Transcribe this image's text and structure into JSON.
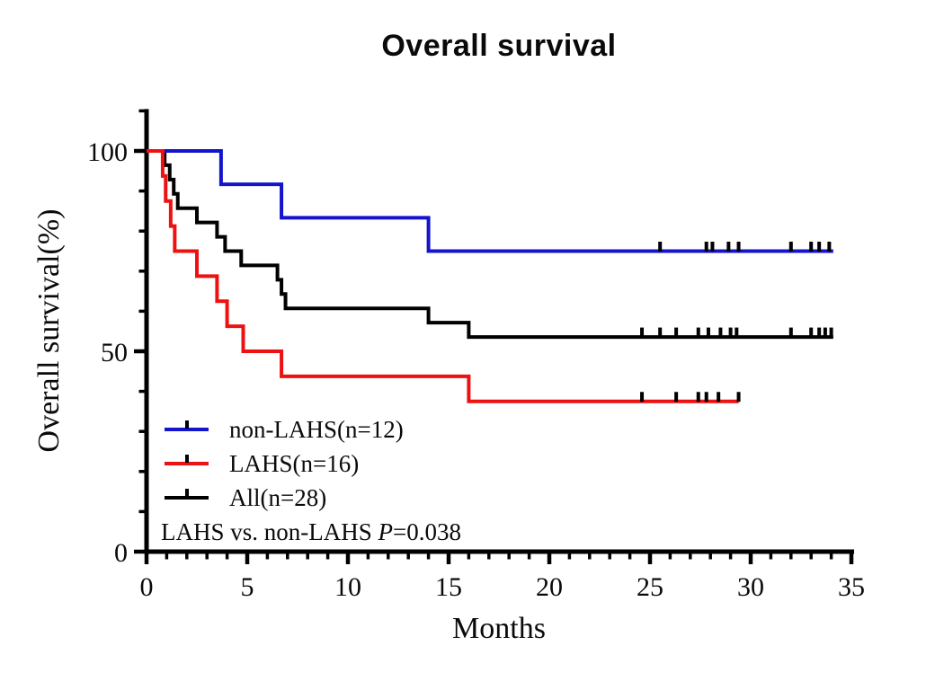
{
  "chart_data": {
    "type": "line",
    "subtype": "kaplan-meier-step",
    "title": "Overall survival",
    "xlabel": "Months",
    "ylabel": "Overall survival(%)",
    "xlim": [
      0,
      35
    ],
    "ylim": [
      0,
      110
    ],
    "x_major_ticks": [
      0,
      5,
      10,
      15,
      20,
      25,
      30,
      35
    ],
    "x_minor_tick_step": 1,
    "y_major_ticks": [
      0,
      50,
      100
    ],
    "y_minor_tick_step": 10,
    "grid": false,
    "legend_position": "lower-left-inside",
    "annotation": "LAHS vs. non-LAHS P=0.038",
    "series": [
      {
        "name": "non-LAHS(n=12)",
        "color": "#1414cc",
        "start": [
          0,
          100
        ],
        "drops": [
          [
            3.7,
            91.67
          ],
          [
            6.7,
            83.33
          ],
          [
            14,
            75
          ]
        ],
        "end_x": 34.1,
        "censor_ticks_x": [
          25.5,
          27.8,
          28.1,
          28.9,
          29.4,
          32.0,
          33.0,
          33.4,
          33.9
        ]
      },
      {
        "name": "LAHS(n=16)",
        "color": "#ee1111",
        "start": [
          0,
          100
        ],
        "drops": [
          [
            0.8,
            93.75
          ],
          [
            0.95,
            87.5
          ],
          [
            1.2,
            81.25
          ],
          [
            1.4,
            75
          ],
          [
            2.5,
            68.75
          ],
          [
            3.5,
            62.5
          ],
          [
            4.0,
            56.25
          ],
          [
            4.8,
            50
          ],
          [
            6.7,
            43.75
          ],
          [
            16,
            37.5
          ]
        ],
        "end_x": 29.4,
        "censor_ticks_x": [
          24.6,
          26.3,
          27.4,
          27.8,
          28.4,
          29.4
        ]
      },
      {
        "name": "All(n=28)",
        "color": "#000000",
        "start": [
          0,
          100
        ],
        "drops": [
          [
            0.9,
            96.43
          ],
          [
            1.15,
            92.86
          ],
          [
            1.35,
            89.29
          ],
          [
            1.55,
            85.71
          ],
          [
            2.5,
            82.14
          ],
          [
            3.5,
            78.57
          ],
          [
            3.9,
            75
          ],
          [
            4.7,
            71.43
          ],
          [
            6.5,
            67.86
          ],
          [
            6.7,
            64.29
          ],
          [
            6.9,
            60.71
          ],
          [
            14,
            57.14
          ],
          [
            16,
            53.57
          ]
        ],
        "end_x": 34.1,
        "censor_ticks_x": [
          24.6,
          25.5,
          26.3,
          27.4,
          27.9,
          28.5,
          29.0,
          29.3,
          32.0,
          33.0,
          33.4,
          33.7,
          34.0
        ]
      }
    ]
  },
  "axes": {
    "x": {
      "label": "Months",
      "tick_labels": [
        "0",
        "5",
        "10",
        "15",
        "20",
        "25",
        "30",
        "35"
      ]
    },
    "y": {
      "label": "Overall survival(%)",
      "tick_labels": [
        "0",
        "50",
        "100"
      ]
    }
  },
  "legend": {
    "entries": [
      {
        "label": "non-LAHS(n=12)",
        "color": "#1414cc"
      },
      {
        "label": "LAHS(n=16)",
        "color": "#ee1111"
      },
      {
        "label": "All(n=28)",
        "color": "#000000"
      }
    ],
    "annotation": {
      "prefix": "LAHS vs. non-LAHS ",
      "italic": "P",
      "suffix": "=0.038"
    }
  }
}
